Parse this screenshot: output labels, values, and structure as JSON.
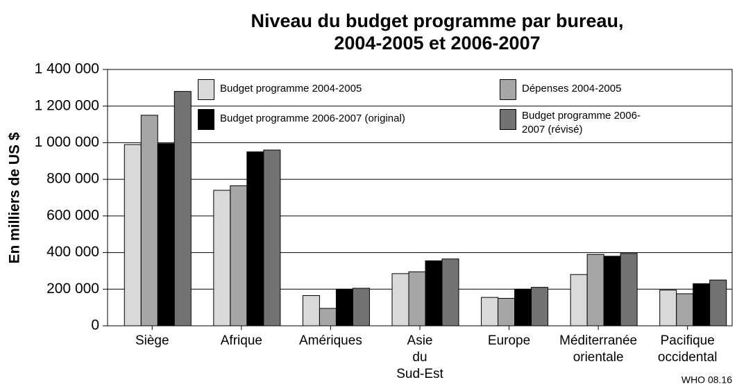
{
  "chart_data": {
    "type": "bar",
    "title": [
      "Niveau du budget programme par bureau,",
      "2004-2005 et 2006-2007"
    ],
    "y_label": "En milliers de US $",
    "footnote": "WHO 08.16",
    "categories": [
      [
        "Siège"
      ],
      [
        "Afrique"
      ],
      [
        "Amériques"
      ],
      [
        "Asie",
        "du",
        "Sud-Est"
      ],
      [
        "Europe"
      ],
      [
        "Méditerranée",
        "orientale"
      ],
      [
        "Pacifique",
        "occidental"
      ]
    ],
    "series": [
      {
        "name": "Budget programme 2004-2005",
        "color": "#d9d9d9",
        "values": [
          990000,
          740000,
          165000,
          285000,
          155000,
          280000,
          195000
        ]
      },
      {
        "name": "Dépenses 2004-2005",
        "color": "#a6a6a6",
        "values": [
          1150000,
          765000,
          95000,
          295000,
          150000,
          390000,
          175000
        ]
      },
      {
        "name": "Budget programme 2006-2007 (original)",
        "color": "#000000",
        "values": [
          995000,
          950000,
          200000,
          355000,
          200000,
          380000,
          230000
        ]
      },
      {
        "name": "Budget programme 2006-2007 (révisé)",
        "color": "#737373",
        "values": [
          1280000,
          960000,
          205000,
          365000,
          210000,
          395000,
          250000
        ]
      }
    ],
    "ylim": [
      0,
      1400000
    ],
    "yticks": [
      0,
      {
        "value": 200000,
        "label": "200 000"
      },
      {
        "value": 400000,
        "label": "400 000"
      },
      {
        "value": 600000,
        "label": "600 000"
      },
      {
        "value": 800000,
        "label": "800 000"
      },
      {
        "value": 1000000,
        "label": "1 000 000"
      },
      {
        "value": 1200000,
        "label": "1 200 000"
      },
      {
        "value": 1400000,
        "label": "1 400 000"
      }
    ],
    "grid": true,
    "legend": "top"
  }
}
